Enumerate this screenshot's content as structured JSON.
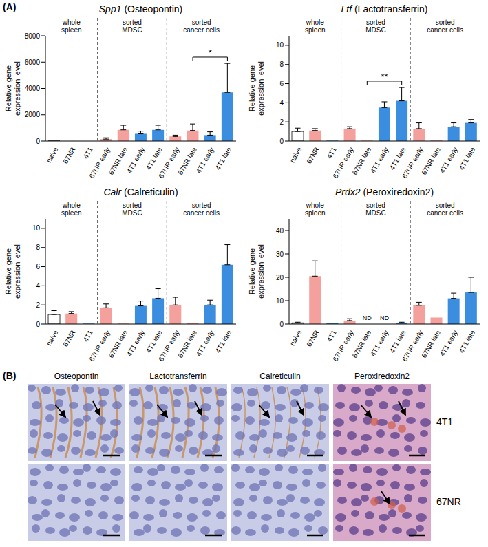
{
  "panel_a": {
    "label": "(A)"
  },
  "chart_data": [
    {
      "type": "bar",
      "title": "Spp1 (Osteopontin)",
      "y_label": "Relative gene expression level",
      "categories": [
        "naive",
        "67NR",
        "4T1",
        "67NR early",
        "67NR late",
        "4T1 early",
        "4T1 late",
        "67NR early",
        "67NR late",
        "4T1 early",
        "4T1 late"
      ],
      "groups": [
        {
          "label": "whole spleen",
          "count": 3
        },
        {
          "label": "sorted MDSC",
          "count": 4
        },
        {
          "label": "sorted cancer cells",
          "count": 4
        }
      ],
      "colors": [
        "#ffffff",
        "#f4a09c",
        "#3b8de0",
        "#f4a09c",
        "#f4a09c",
        "#3b8de0",
        "#3b8de0",
        "#f4a09c",
        "#f4a09c",
        "#3b8de0",
        "#3b8de0"
      ],
      "values": [
        1,
        4,
        0.5,
        150,
        850,
        550,
        850,
        350,
        800,
        450,
        3700
      ],
      "errors": [
        null,
        null,
        null,
        100,
        350,
        200,
        350,
        100,
        500,
        250,
        2200
      ],
      "ylim": [
        0,
        8000
      ],
      "yticks": [
        0,
        2000,
        4000,
        6000,
        8000
      ],
      "significance": [
        {
          "from": 8,
          "to": 10,
          "label": "*"
        }
      ],
      "annotations": []
    },
    {
      "type": "bar",
      "title": "Ltf (Lactotransferrin)",
      "y_label": "Relative gene expression level",
      "categories": [
        "naive",
        "67NR",
        "4T1",
        "67NR early",
        "67NR late",
        "4T1 early",
        "4T1 late",
        "67NR early",
        "67NR late",
        "4T1 early",
        "4T1 late"
      ],
      "groups": [
        {
          "label": "whole spleen",
          "count": 3
        },
        {
          "label": "sorted MDSC",
          "count": 4
        },
        {
          "label": "sorted cancer cells",
          "count": 4
        }
      ],
      "colors": [
        "#ffffff",
        "#f4a09c",
        "#3b8de0",
        "#f4a09c",
        "#f4a09c",
        "#3b8de0",
        "#3b8de0",
        "#f4a09c",
        "#f4a09c",
        "#3b8de0",
        "#3b8de0"
      ],
      "values": [
        1.0,
        1.1,
        0.05,
        1.3,
        0.05,
        3.5,
        4.2,
        1.3,
        0.1,
        1.5,
        1.9
      ],
      "errors": [
        0.35,
        0.2,
        null,
        0.2,
        null,
        0.6,
        1.4,
        0.6,
        null,
        0.4,
        0.35
      ],
      "ylim": [
        0,
        11
      ],
      "yticks": [
        0,
        2,
        4,
        6,
        8,
        10
      ],
      "significance": [
        {
          "from": 4,
          "to": 6,
          "label": "**"
        }
      ],
      "annotations": []
    },
    {
      "type": "bar",
      "title": "Calr (Calreticulin)",
      "y_label": "Relative gene expression level",
      "categories": [
        "naive",
        "67NR",
        "4T1",
        "67NR early",
        "67NR late",
        "4T1 early",
        "4T1 late",
        "67NR early",
        "67NR late",
        "4T1 early",
        "4T1 late"
      ],
      "groups": [
        {
          "label": "whole spleen",
          "count": 3
        },
        {
          "label": "sorted MDSC",
          "count": 4
        },
        {
          "label": "sorted cancer cells",
          "count": 4
        }
      ],
      "colors": [
        "#ffffff",
        "#f4a09c",
        "#3b8de0",
        "#f4a09c",
        "#f4a09c",
        "#3b8de0",
        "#3b8de0",
        "#f4a09c",
        "#f4a09c",
        "#3b8de0",
        "#3b8de0"
      ],
      "values": [
        1.0,
        1.1,
        0.05,
        1.7,
        0.05,
        1.9,
        2.7,
        2.0,
        0.1,
        2.0,
        6.2
      ],
      "errors": [
        0.4,
        0.2,
        null,
        0.4,
        null,
        0.5,
        1.0,
        0.8,
        null,
        0.5,
        2.1
      ],
      "ylim": [
        0,
        11
      ],
      "yticks": [
        0,
        2,
        4,
        6,
        8,
        10
      ],
      "significance": [],
      "annotations": []
    },
    {
      "type": "bar",
      "title": "Prdx2 (Peroxiredoxin2)",
      "y_label": "Relative gene expression level",
      "categories": [
        "naive",
        "67NR",
        "4T1",
        "67NR early",
        "67NR late",
        "4T1 early",
        "4T1 late",
        "67NR early",
        "67NR late",
        "4T1 early",
        "4T1 late"
      ],
      "groups": [
        {
          "label": "whole spleen",
          "count": 3
        },
        {
          "label": "sorted MDSC",
          "count": 4
        },
        {
          "label": "sorted cancer cells",
          "count": 4
        }
      ],
      "colors": [
        "#ffffff",
        "#f4a09c",
        "#3b8de0",
        "#f4a09c",
        "#f4a09c",
        "#3b8de0",
        "#3b8de0",
        "#f4a09c",
        "#f4a09c",
        "#3b8de0",
        "#3b8de0"
      ],
      "values": [
        0.5,
        20.5,
        0.3,
        1.5,
        null,
        null,
        0.5,
        8,
        2.8,
        11,
        13.5
      ],
      "errors": [
        0.3,
        6.5,
        null,
        0.8,
        null,
        null,
        0.3,
        1.3,
        null,
        2.2,
        6.5
      ],
      "ylim": [
        0,
        45
      ],
      "yticks": [
        0,
        10,
        20,
        30,
        40
      ],
      "significance": [],
      "annotations": [
        {
          "index": 4,
          "text": "ND"
        },
        {
          "index": 5,
          "text": "ND"
        }
      ]
    }
  ],
  "panel_b": {
    "label": "(B)",
    "columns": [
      "Osteopontin",
      "Lactotransferrin",
      "Calreticulin",
      "Peroxiredoxin2"
    ],
    "rows": [
      "4T1",
      "67NR"
    ]
  }
}
